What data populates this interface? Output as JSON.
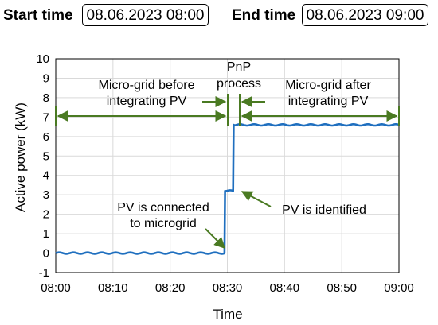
{
  "header": {
    "start_label": "Start time",
    "start_value": "08.06.2023 08:00",
    "end_label": "End time",
    "end_value": "08.06.2023 09:00"
  },
  "chart_data": {
    "type": "line",
    "title": "",
    "xlabel": "Time",
    "ylabel": "Active power (kW)",
    "xlim_minutes": [
      0,
      60
    ],
    "ylim": [
      -1,
      10
    ],
    "x_tick_labels": [
      "08:00",
      "08:10",
      "08:20",
      "08:30",
      "08:40",
      "08:50",
      "09:00"
    ],
    "y_ticks": [
      -1,
      0,
      1,
      2,
      3,
      4,
      5,
      6,
      7,
      8,
      9,
      10
    ],
    "grid": true,
    "line_color": "#1f6fbf",
    "annotation_color": "#4a7a22",
    "series": [
      {
        "x_minutes": [
          0,
          29.5,
          29.6,
          31.0,
          31.1,
          60
        ],
        "y": [
          0.0,
          0.0,
          3.2,
          3.2,
          6.6,
          6.6
        ]
      }
    ],
    "annotations": {
      "before_line1": "Micro-grid before",
      "before_line2": "integrating PV",
      "pnp_line1": "PnP",
      "pnp_line2": "process",
      "after_line1": "Micro-grid after",
      "after_line2": "integrating PV",
      "connected_line1": "PV is connected",
      "connected_line2": "to microgrid",
      "identified": "PV is identified"
    }
  }
}
